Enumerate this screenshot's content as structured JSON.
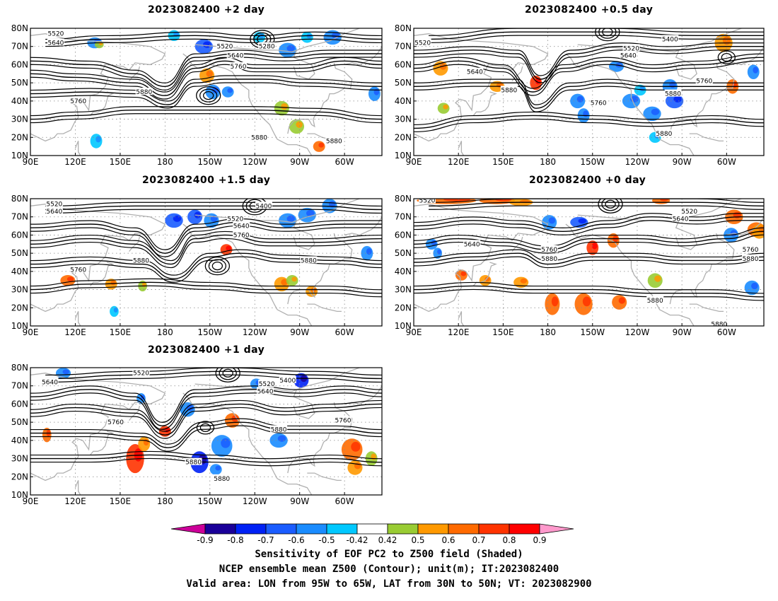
{
  "panels": [
    {
      "id": "p1",
      "title": "2023082400 +2 day"
    },
    {
      "id": "p2",
      "title": "2023082400 +0.5 day"
    },
    {
      "id": "p3",
      "title": "2023082400 +1.5 day"
    },
    {
      "id": "p4",
      "title": "2023082400 +0 day"
    },
    {
      "id": "p5",
      "title": "2023082400 +1 day"
    }
  ],
  "map": {
    "lon_labels": [
      "90E",
      "120E",
      "150E",
      "180",
      "150W",
      "120W",
      "90W",
      "60W"
    ],
    "lat_labels": [
      "80N",
      "70N",
      "60N",
      "50N",
      "40N",
      "30N",
      "20N",
      "10N"
    ],
    "lon_range": [
      90,
      325
    ],
    "lat_range": [
      10,
      80
    ],
    "contour_levels": [
      "5280",
      "5400",
      "5520",
      "5640",
      "5760",
      "5880"
    ],
    "colors": {
      "coast": "#b0b0b0",
      "contour": "#000000",
      "grid": "#888888"
    }
  },
  "panel_contour_labels": [
    [
      {
        "text": "5520",
        "lon": 107,
        "lat": 77
      },
      {
        "text": "5640",
        "lon": 107,
        "lat": 72
      },
      {
        "text": "5520",
        "lon": 220,
        "lat": 70
      },
      {
        "text": "5280",
        "lon": 248,
        "lat": 70
      },
      {
        "text": "5640",
        "lon": 227,
        "lat": 65
      },
      {
        "text": "5760",
        "lon": 229,
        "lat": 59
      },
      {
        "text": "5880",
        "lon": 166,
        "lat": 45
      },
      {
        "text": "5760",
        "lon": 122,
        "lat": 40
      },
      {
        "text": "5880",
        "lon": 243,
        "lat": 20
      },
      {
        "text": "5880",
        "lon": 293,
        "lat": 18
      }
    ],
    [
      {
        "text": "5520",
        "lon": 96,
        "lat": 72
      },
      {
        "text": "5400",
        "lon": 262,
        "lat": 74
      },
      {
        "text": "5520",
        "lon": 236,
        "lat": 69
      },
      {
        "text": "5640",
        "lon": 234,
        "lat": 65
      },
      {
        "text": "5640",
        "lon": 131,
        "lat": 56
      },
      {
        "text": "5760",
        "lon": 285,
        "lat": 51
      },
      {
        "text": "5880",
        "lon": 154,
        "lat": 46
      },
      {
        "text": "5880",
        "lon": 264,
        "lat": 44
      },
      {
        "text": "5760",
        "lon": 214,
        "lat": 39
      },
      {
        "text": "5880",
        "lon": 258,
        "lat": 22
      }
    ],
    [
      {
        "text": "5520",
        "lon": 106,
        "lat": 77
      },
      {
        "text": "5400",
        "lon": 246,
        "lat": 76
      },
      {
        "text": "5640",
        "lon": 106,
        "lat": 73
      },
      {
        "text": "5520",
        "lon": 227,
        "lat": 69
      },
      {
        "text": "5640",
        "lon": 231,
        "lat": 65
      },
      {
        "text": "5760",
        "lon": 231,
        "lat": 60
      },
      {
        "text": "5880",
        "lon": 164,
        "lat": 46
      },
      {
        "text": "5880",
        "lon": 276,
        "lat": 46
      },
      {
        "text": "5760",
        "lon": 122,
        "lat": 41
      }
    ],
    [
      {
        "text": "5520",
        "lon": 99,
        "lat": 79
      },
      {
        "text": "5520",
        "lon": 275,
        "lat": 73
      },
      {
        "text": "5640",
        "lon": 269,
        "lat": 69
      },
      {
        "text": "5640",
        "lon": 129,
        "lat": 55
      },
      {
        "text": "5760",
        "lon": 181,
        "lat": 52
      },
      {
        "text": "5880",
        "lon": 181,
        "lat": 47
      },
      {
        "text": "5760",
        "lon": 316,
        "lat": 52
      },
      {
        "text": "5880",
        "lon": 316,
        "lat": 47
      },
      {
        "text": "5880",
        "lon": 252,
        "lat": 24
      },
      {
        "text": "5880",
        "lon": 295,
        "lat": 11
      }
    ],
    [
      {
        "text": "5520",
        "lon": 164,
        "lat": 77
      },
      {
        "text": "5640",
        "lon": 103,
        "lat": 72
      },
      {
        "text": "5400",
        "lon": 262,
        "lat": 73
      },
      {
        "text": "5520",
        "lon": 248,
        "lat": 71
      },
      {
        "text": "5640",
        "lon": 247,
        "lat": 67
      },
      {
        "text": "5760",
        "lon": 147,
        "lat": 50
      },
      {
        "text": "5760",
        "lon": 299,
        "lat": 51
      },
      {
        "text": "5880",
        "lon": 256,
        "lat": 46
      },
      {
        "text": "5880",
        "lon": 199,
        "lat": 28
      },
      {
        "text": "5880",
        "lon": 218,
        "lat": 19
      }
    ]
  ],
  "colorbar": {
    "labels": [
      "-0.9",
      "-0.8",
      "-0.7",
      "-0.6",
      "-0.5",
      "-0.42",
      "0.42",
      "0.5",
      "0.6",
      "0.7",
      "0.8",
      "0.9"
    ],
    "colors": [
      "#1a0099",
      "#0021f5",
      "#1a5cff",
      "#1a8cff",
      "#00c8ff",
      "#ffffff",
      "#99cc33",
      "#ff9900",
      "#ff6a00",
      "#ff3300",
      "#ff0000"
    ],
    "under_color": "#cc0099",
    "over_color": "#ff99cc"
  },
  "caption": {
    "line1": "Sensitivity of EOF PC2 to Z500 field (Shaded)",
    "line2": "NCEP ensemble mean Z500 (Contour); unit(m); IT:2023082400",
    "line3": "Valid area: LON from 95W to 65W, LAT from 30N to 50N; VT: 2023082900"
  }
}
